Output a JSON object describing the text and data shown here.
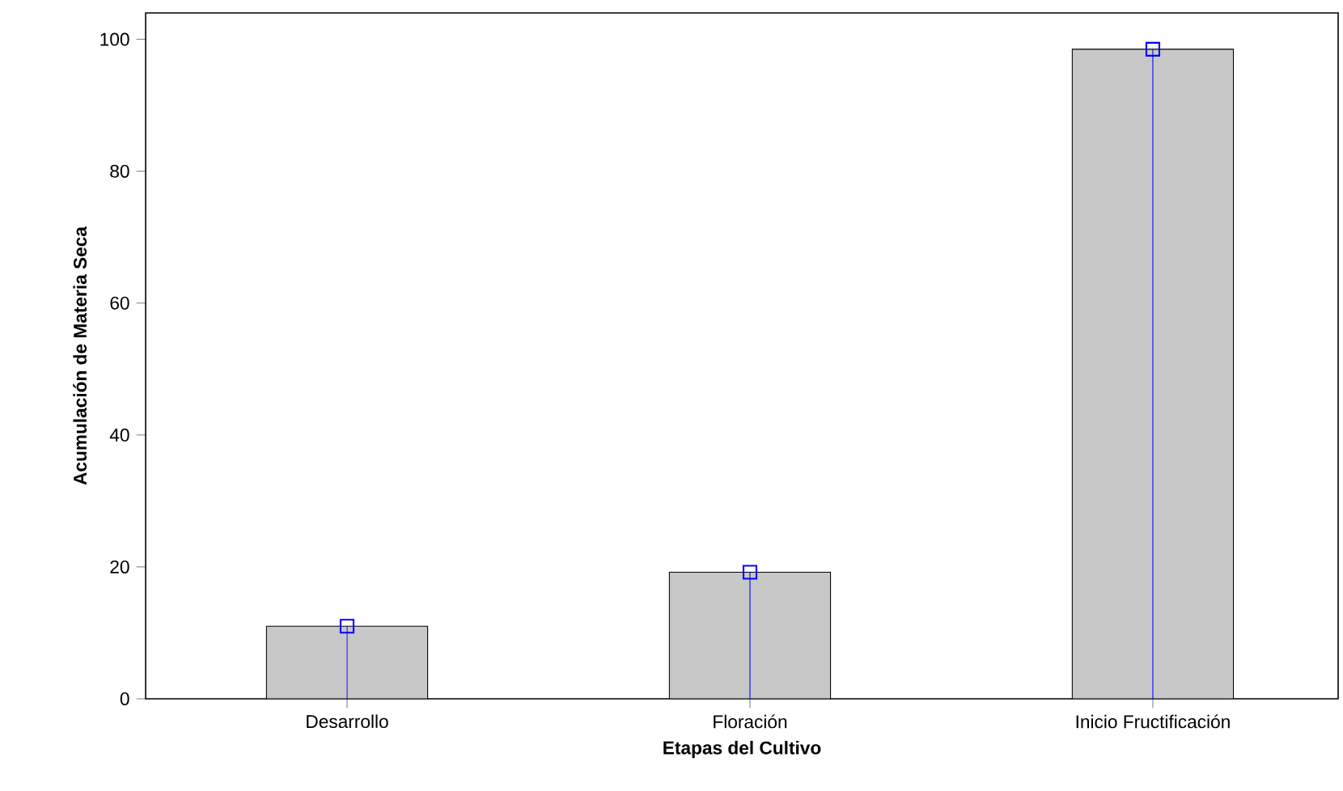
{
  "chart_data": {
    "type": "bar",
    "xlabel": "Etapas del Cultivo",
    "ylabel": "Acumulación de Materia Seca",
    "categories": [
      "Desarrollo",
      "Floración",
      "Inicio Fructificación"
    ],
    "series": [
      {
        "color": "#c8c8c8",
        "values": [
          11,
          19.2,
          98.5
        ]
      },
      {
        "type": "lollipop",
        "color": "#0000ff",
        "marker": "square",
        "values": [
          11,
          19.2,
          98.5
        ]
      }
    ],
    "ylim": [
      0,
      104
    ],
    "yticks": [
      0,
      20,
      40,
      60,
      80,
      100
    ]
  }
}
